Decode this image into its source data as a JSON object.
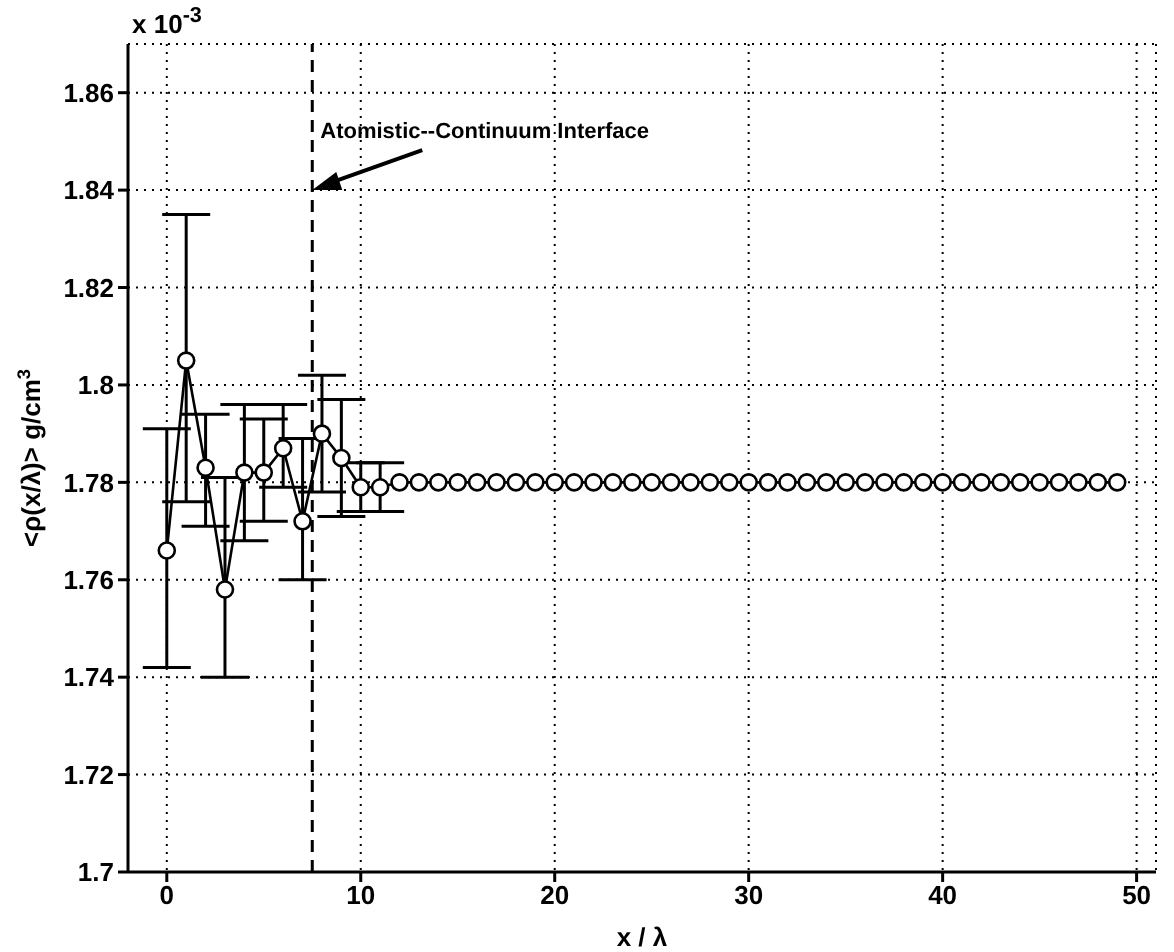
{
  "chart_data": {
    "type": "line",
    "xlabel": "x / λ",
    "ylabel": "<ρ(x/λ)> g/cm$^{3}$",
    "x": [
      0,
      1,
      2,
      3,
      4,
      5,
      6,
      7,
      8,
      9,
      10,
      11,
      12,
      13,
      14,
      15,
      16,
      17,
      18,
      19,
      20,
      21,
      22,
      23,
      24,
      25,
      26,
      27,
      28,
      29,
      30,
      31,
      32,
      33,
      34,
      35,
      36,
      37,
      38,
      39,
      40,
      41,
      42,
      43,
      44,
      45,
      46,
      47,
      48,
      49
    ],
    "series": [
      {
        "color": "#000000",
        "values": [
          1.766,
          1.805,
          1.783,
          1.758,
          1.782,
          1.782,
          1.787,
          1.772,
          1.79,
          1.785,
          1.779,
          1.779,
          1.78,
          1.78,
          1.78,
          1.78,
          1.78,
          1.78,
          1.78,
          1.78,
          1.78,
          1.78,
          1.78,
          1.78,
          1.78,
          1.78,
          1.78,
          1.78,
          1.78,
          1.78,
          1.78,
          1.78,
          1.78,
          1.78,
          1.78,
          1.78,
          1.78,
          1.78,
          1.78,
          1.78,
          1.78,
          1.78,
          1.78,
          1.78,
          1.78,
          1.78,
          1.78,
          1.78,
          1.78,
          1.78
        ],
        "errors": [
          [
            1.742,
            1.791
          ],
          [
            1.776,
            1.835
          ],
          [
            1.771,
            1.794
          ],
          [
            1.74,
            1.781
          ],
          [
            1.768,
            1.796
          ],
          [
            1.772,
            1.793
          ],
          [
            1.779,
            1.796
          ],
          [
            1.76,
            1.789
          ],
          [
            1.778,
            1.802
          ],
          [
            1.773,
            1.797
          ],
          [
            1.774,
            1.784
          ],
          [
            1.774,
            1.784
          ],
          null,
          null,
          null,
          null,
          null,
          null,
          null,
          null,
          null,
          null,
          null,
          null,
          null,
          null,
          null,
          null,
          null,
          null,
          null,
          null,
          null,
          null,
          null,
          null,
          null,
          null,
          null,
          null,
          null,
          null,
          null,
          null,
          null,
          null,
          null,
          null,
          null,
          null
        ]
      }
    ],
    "xlim": [
      -2,
      51
    ],
    "xticks": [
      0,
      10,
      20,
      30,
      40,
      50
    ],
    "ylim": [
      1.7,
      1.87
    ],
    "yticks": [
      1.7,
      1.72,
      1.74,
      1.76,
      1.78,
      1.8,
      1.82,
      1.84,
      1.86
    ],
    "ref_lines": [
      {
        "axis": "x",
        "value": 7.5,
        "line_style": "dashed",
        "color": "#000000"
      }
    ],
    "annotations": [
      "x 10$^{-3}$",
      {
        "text": "Atomistic--Continuum Interface",
        "x": 7.5,
        "y": 1.84
      }
    ],
    "grid": true,
    "marker": "circle",
    "line_style": "solid"
  }
}
